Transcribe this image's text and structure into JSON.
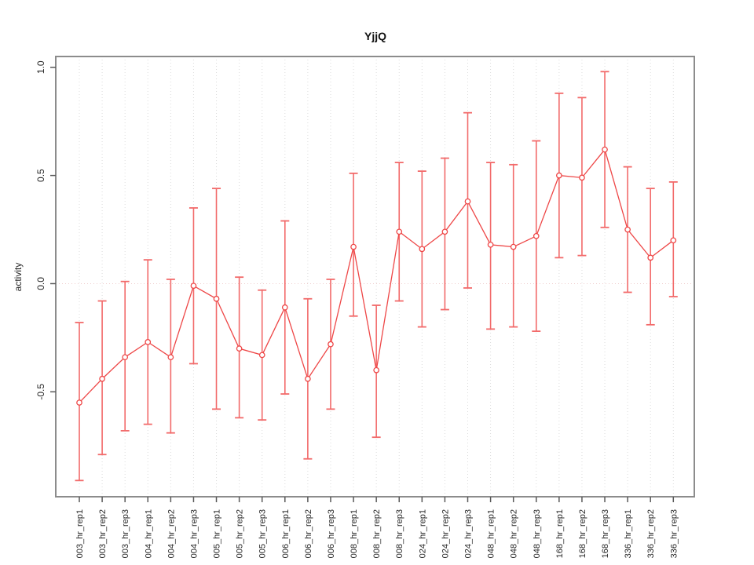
{
  "figure": {
    "background": "#ffffff"
  },
  "chart_data": {
    "type": "line",
    "title": "YjjQ",
    "xlabel": "",
    "ylabel": "activity",
    "legend": "none",
    "grid": "vertical-dotted",
    "zero_line": true,
    "marker": "open-circle",
    "error_bars": true,
    "ylim": [
      -0.985,
      1.05
    ],
    "yticks": [
      -0.5,
      0.0,
      0.5,
      1.0
    ],
    "ytick_labels": [
      "-0.5",
      "0.0",
      "0.5",
      "1.0"
    ],
    "categories": [
      "003_hr_rep1",
      "003_hr_rep2",
      "003_hr_rep3",
      "004_hr_rep1",
      "004_hr_rep2",
      "004_hr_rep3",
      "005_hr_rep1",
      "005_hr_rep2",
      "005_hr_rep3",
      "006_hr_rep1",
      "006_hr_rep2",
      "006_hr_rep3",
      "008_hr_rep1",
      "008_hr_rep2",
      "008_hr_rep3",
      "024_hr_rep1",
      "024_hr_rep2",
      "024_hr_rep3",
      "048_hr_rep1",
      "048_hr_rep2",
      "048_hr_rep3",
      "168_hr_rep1",
      "168_hr_rep2",
      "168_hr_rep3",
      "336_hr_rep1",
      "336_hr_rep2",
      "336_hr_rep3"
    ],
    "series": [
      {
        "name": "activity",
        "values": [
          -0.55,
          -0.44,
          -0.34,
          -0.27,
          -0.34,
          -0.01,
          -0.07,
          -0.3,
          -0.33,
          -0.11,
          -0.44,
          -0.28,
          0.17,
          -0.4,
          0.24,
          0.16,
          0.24,
          0.38,
          0.18,
          0.17,
          0.22,
          0.5,
          0.49,
          0.62,
          0.25,
          0.12,
          0.2
        ],
        "upper": [
          -0.18,
          -0.08,
          0.01,
          0.11,
          0.02,
          0.35,
          0.44,
          0.03,
          -0.03,
          0.29,
          -0.07,
          0.02,
          0.51,
          -0.1,
          0.56,
          0.52,
          0.58,
          0.79,
          0.56,
          0.55,
          0.66,
          0.88,
          0.86,
          0.98,
          0.54,
          0.44,
          0.47
        ],
        "lower": [
          -0.91,
          -0.79,
          -0.68,
          -0.65,
          -0.69,
          -0.37,
          -0.58,
          -0.62,
          -0.63,
          -0.51,
          -0.81,
          -0.58,
          -0.15,
          -0.71,
          -0.08,
          -0.2,
          -0.12,
          -0.02,
          -0.21,
          -0.2,
          -0.22,
          0.12,
          0.13,
          0.26,
          -0.04,
          -0.19,
          -0.06
        ]
      }
    ],
    "colors": {
      "series": "#ee4747",
      "errorbar": "#f26a6a",
      "gridline": "#dcdcdc",
      "zero_line": "#efcccc",
      "box": "#8c8c8c",
      "tick": "#595959",
      "text": "#262626"
    }
  }
}
